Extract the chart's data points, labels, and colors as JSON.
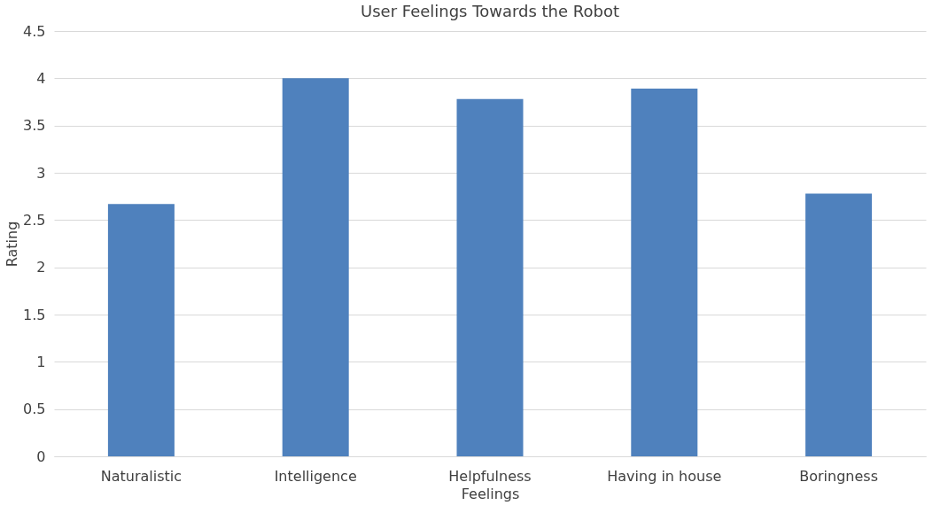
{
  "chart_data": {
    "type": "bar",
    "title": "User Feelings Towards the Robot",
    "xlabel": "Feelings",
    "ylabel": "Rating",
    "categories": [
      "Naturalistic",
      "Intelligence",
      "Helpfulness",
      "Having in house",
      "Boringness"
    ],
    "series": [
      {
        "color": "#4f81bd",
        "values": [
          2.67,
          4.0,
          3.78,
          3.89,
          2.78
        ]
      }
    ],
    "ylim": [
      0,
      4.5
    ],
    "yticks": [
      0,
      0.5,
      1,
      1.5,
      2,
      2.5,
      3,
      3.5,
      4,
      4.5
    ],
    "grid": "y",
    "legend": false
  }
}
